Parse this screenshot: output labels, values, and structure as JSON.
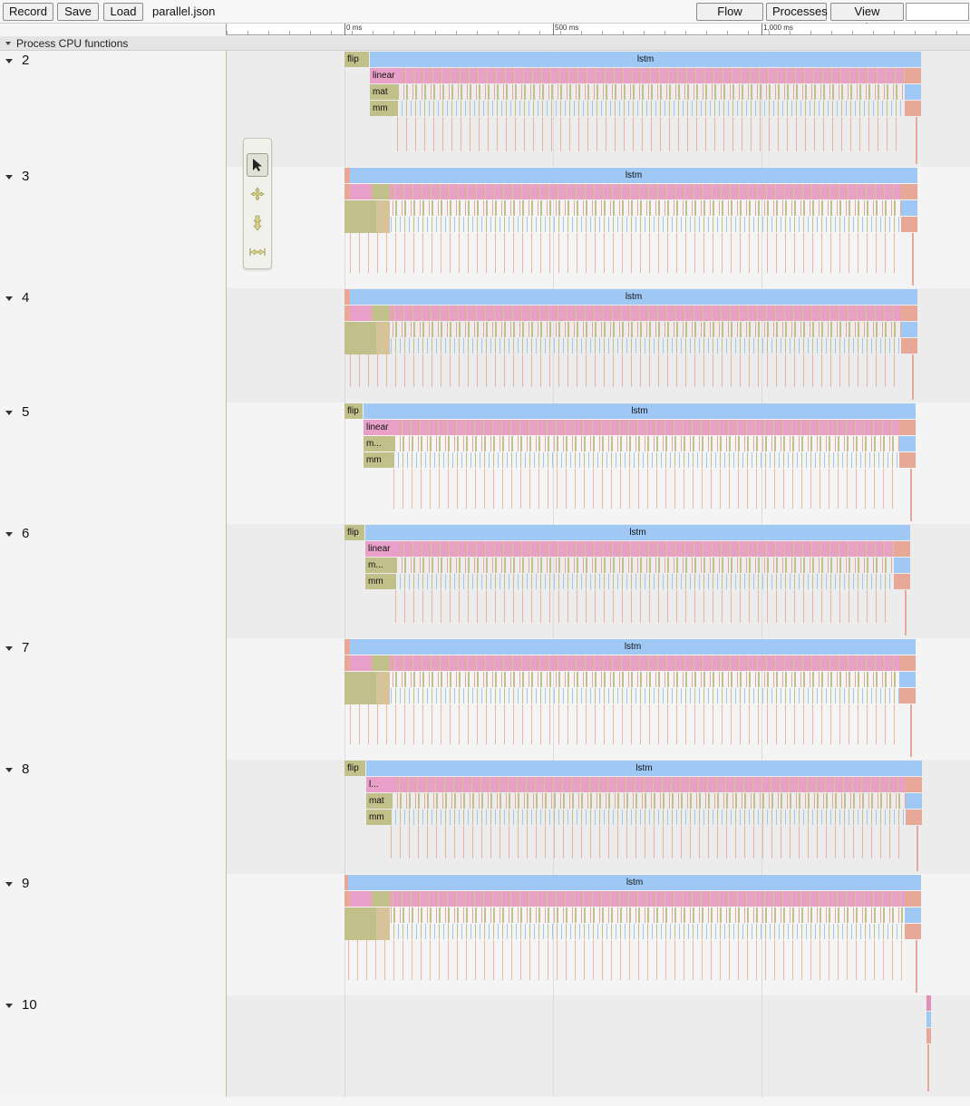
{
  "toolbar": {
    "record_label": "Record",
    "save_label": "Save",
    "load_label": "Load",
    "filename": "parallel.json",
    "flow_events_label": "Flow events",
    "processes_label": "Processes",
    "view_options_label": "View Options",
    "search_value": ""
  },
  "ruler": {
    "labels": [
      "0 ms",
      "500 ms",
      "1,000 ms"
    ]
  },
  "process": {
    "title": "Process CPU functions"
  },
  "tools": {
    "items": [
      "selection-tool",
      "pan-tool",
      "zoom-tool",
      "timing-tool"
    ],
    "active": "selection-tool"
  },
  "colors": {
    "lstm": "#9fc8f5",
    "linear": "#e8a0c8",
    "mat": "#c2c08a",
    "mm": "#c2c08a",
    "flip": "#c2c08a",
    "salmon": "#e8a898",
    "tan": "#d6c39a"
  },
  "threads": [
    {
      "name": "2",
      "slices": [
        {
          "label": "flip",
          "x": 380,
          "w": 27,
          "depth": 0,
          "color": "mat"
        },
        {
          "label": "lstm",
          "x": 408,
          "w": 608,
          "depth": 0,
          "color": "lstm"
        },
        {
          "label": "linear",
          "x": 408,
          "w": 30,
          "depth": 1,
          "color": "linear"
        },
        {
          "label": "mat",
          "x": 408,
          "w": 30,
          "depth": 2,
          "color": "mat"
        },
        {
          "label": "mm",
          "x": 408,
          "w": 30,
          "depth": 3,
          "color": "mat"
        }
      ]
    },
    {
      "name": "3",
      "slices": [
        {
          "label": "lstm",
          "x": 386,
          "w": 626,
          "depth": 0,
          "color": "lstm"
        }
      ]
    },
    {
      "name": "4",
      "slices": [
        {
          "label": "lstm",
          "x": 386,
          "w": 626,
          "depth": 0,
          "color": "lstm"
        }
      ]
    },
    {
      "name": "5",
      "slices": [
        {
          "label": "flip",
          "x": 380,
          "w": 20,
          "depth": 0,
          "color": "mat"
        },
        {
          "label": "lstm",
          "x": 401,
          "w": 609,
          "depth": 0,
          "color": "lstm"
        },
        {
          "label": "linear",
          "x": 401,
          "w": 33,
          "depth": 1,
          "color": "linear"
        },
        {
          "label": "m...",
          "x": 401,
          "w": 33,
          "depth": 2,
          "color": "mat"
        },
        {
          "label": "mm",
          "x": 401,
          "w": 33,
          "depth": 3,
          "color": "mat"
        }
      ]
    },
    {
      "name": "6",
      "slices": [
        {
          "label": "flip",
          "x": 380,
          "w": 22,
          "depth": 0,
          "color": "mat"
        },
        {
          "label": "lstm",
          "x": 403,
          "w": 601,
          "depth": 0,
          "color": "lstm"
        },
        {
          "label": "linear",
          "x": 403,
          "w": 33,
          "depth": 1,
          "color": "linear"
        },
        {
          "label": "m...",
          "x": 403,
          "w": 33,
          "depth": 2,
          "color": "mat"
        },
        {
          "label": "mm",
          "x": 403,
          "w": 33,
          "depth": 3,
          "color": "mat"
        }
      ]
    },
    {
      "name": "7",
      "slices": [
        {
          "label": "lstm",
          "x": 386,
          "w": 624,
          "depth": 0,
          "color": "lstm"
        }
      ]
    },
    {
      "name": "8",
      "slices": [
        {
          "label": "flip",
          "x": 380,
          "w": 23,
          "depth": 0,
          "color": "mat"
        },
        {
          "label": "lstm",
          "x": 404,
          "w": 613,
          "depth": 0,
          "color": "lstm"
        },
        {
          "label": "l...",
          "x": 404,
          "w": 27,
          "depth": 1,
          "color": "linear"
        },
        {
          "label": "mat",
          "x": 404,
          "w": 27,
          "depth": 2,
          "color": "mat"
        },
        {
          "label": "mm",
          "x": 404,
          "w": 27,
          "depth": 3,
          "color": "mat"
        }
      ]
    },
    {
      "name": "9",
      "slices": [
        {
          "label": "lstm",
          "x": 384,
          "w": 632,
          "depth": 0,
          "color": "lstm"
        }
      ]
    },
    {
      "name": "10",
      "slices": []
    }
  ]
}
